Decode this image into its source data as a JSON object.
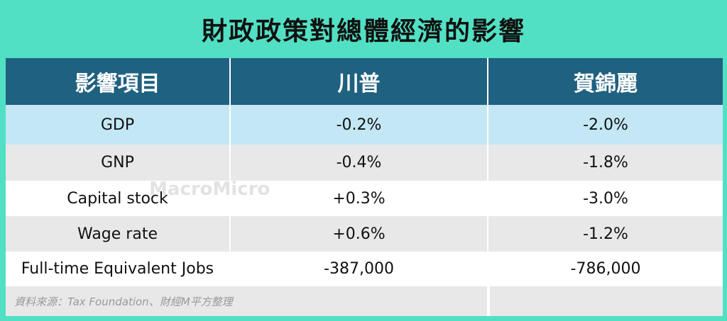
{
  "title": "財政政策對總體經濟的影響",
  "table": {
    "header": [
      "影響項目",
      "川普",
      "賀錦麗"
    ],
    "rows": [
      [
        "GDP",
        "-0.2%",
        "-2.0%"
      ],
      [
        "GNP",
        "-0.4%",
        "-1.8%"
      ],
      [
        "Capital stock",
        "+0.3%",
        "-3.0%"
      ],
      [
        "Wage rate",
        "+0.6%",
        "-1.2%"
      ],
      [
        "Full-time Equivalent Jobs",
        "-387,000",
        "-786,000"
      ]
    ]
  },
  "source": "資料來源：Tax Foundation、財經M平方整理",
  "watermark": "MacroMicro"
}
